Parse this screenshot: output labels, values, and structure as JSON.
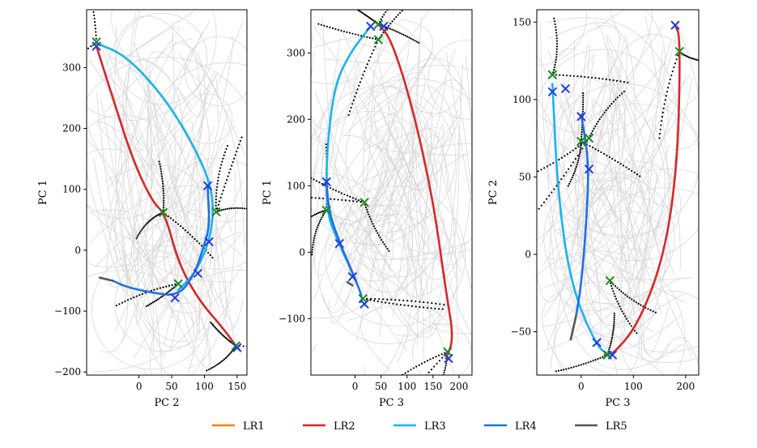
{
  "chart_data": [
    {
      "type": "line",
      "panel": "left",
      "xlabel": "PC 2",
      "ylabel": "PC 1",
      "xlim": [
        -80,
        165
      ],
      "ylim": [
        -205,
        395
      ],
      "xticks": [
        0,
        50,
        100,
        150
      ],
      "yticks": [
        -200,
        -100,
        0,
        100,
        200,
        300
      ],
      "series": [
        {
          "name": "LR2",
          "points": [
            [
              -65,
              335
            ],
            [
              -40,
              250
            ],
            [
              -10,
              150
            ],
            [
              20,
              80
            ],
            [
              40,
              60
            ],
            [
              60,
              -20
            ],
            [
              90,
              -80
            ],
            [
              130,
              -130
            ],
            [
              150,
              -160
            ]
          ]
        },
        {
          "name": "LR3",
          "points": [
            [
              -65,
              340
            ],
            [
              -20,
              320
            ],
            [
              40,
              250
            ],
            [
              90,
              160
            ],
            [
              115,
              90
            ],
            [
              110,
              20
            ],
            [
              85,
              -40
            ],
            [
              60,
              -65
            ]
          ]
        },
        {
          "name": "LR4",
          "points": [
            [
              105,
              105
            ],
            [
              108,
              40
            ],
            [
              100,
              10
            ],
            [
              85,
              -40
            ],
            [
              60,
              -75
            ],
            [
              20,
              -70
            ],
            [
              -20,
              -60
            ],
            [
              -40,
              -50
            ]
          ]
        },
        {
          "name": "LR5",
          "points": [
            [
              -40,
              -50
            ],
            [
              -60,
              -45
            ]
          ]
        }
      ],
      "markers_green": [
        [
          -65,
          342
        ],
        [
          37,
          62
        ],
        [
          118,
          63
        ],
        [
          60,
          -55
        ],
        [
          148,
          -157
        ]
      ],
      "markers_blue": [
        [
          -65,
          335
        ],
        [
          105,
          106
        ],
        [
          107,
          14
        ],
        [
          90,
          -38
        ],
        [
          55,
          -78
        ],
        [
          150,
          -160
        ]
      ]
    },
    {
      "type": "line",
      "panel": "middle",
      "xlabel": "PC 3",
      "ylabel": "PC 1",
      "xlim": [
        -85,
        225
      ],
      "ylim": [
        -185,
        365
      ],
      "xticks": [
        0,
        50,
        100,
        150,
        200
      ],
      "yticks": [
        -100,
        0,
        100,
        200,
        300
      ],
      "series": [
        {
          "name": "LR2",
          "points": [
            [
              45,
              343
            ],
            [
              70,
              320
            ],
            [
              110,
              220
            ],
            [
              150,
              80
            ],
            [
              175,
              -60
            ],
            [
              190,
              -130
            ],
            [
              175,
              -160
            ]
          ]
        },
        {
          "name": "LR3",
          "points": [
            [
              30,
              340
            ],
            [
              -10,
              300
            ],
            [
              -40,
              250
            ],
            [
              -55,
              150
            ],
            [
              -55,
              60
            ],
            [
              -35,
              20
            ],
            [
              0,
              -40
            ]
          ]
        },
        {
          "name": "LR4",
          "points": [
            [
              -55,
              105
            ],
            [
              -50,
              60
            ],
            [
              -30,
              15
            ],
            [
              0,
              -40
            ],
            [
              15,
              -70
            ],
            [
              10,
              -75
            ]
          ]
        },
        {
          "name": "LR5",
          "points": [
            [
              -5,
              -50
            ],
            [
              -15,
              -45
            ]
          ]
        }
      ],
      "markers_green": [
        [
          45,
          343
        ],
        [
          45,
          320
        ],
        [
          -55,
          63
        ],
        [
          18,
          75
        ],
        [
          178,
          -150
        ],
        [
          15,
          -70
        ]
      ],
      "markers_blue": [
        [
          30,
          340
        ],
        [
          55,
          340
        ],
        [
          -55,
          106
        ],
        [
          -30,
          13
        ],
        [
          -5,
          -37
        ],
        [
          18,
          -78
        ],
        [
          180,
          -160
        ]
      ]
    },
    {
      "type": "line",
      "panel": "right",
      "xlabel": "PC 3",
      "ylabel": "PC 2",
      "xlim": [
        -85,
        225
      ],
      "ylim": [
        -78,
        158
      ],
      "xticks": [
        0,
        100,
        200
      ],
      "yticks": [
        -50,
        0,
        50,
        100,
        150
      ],
      "series": [
        {
          "name": "LR2",
          "points": [
            [
              180,
              148
            ],
            [
              190,
              140
            ],
            [
              185,
              60
            ],
            [
              160,
              0
            ],
            [
              110,
              -45
            ],
            [
              60,
              -65
            ],
            [
              45,
              -65
            ]
          ]
        },
        {
          "name": "LR3",
          "points": [
            [
              -55,
              110
            ],
            [
              -45,
              40
            ],
            [
              -20,
              -20
            ],
            [
              30,
              -60
            ],
            [
              55,
              -65
            ]
          ]
        },
        {
          "name": "LR4",
          "points": [
            [
              0,
              90
            ],
            [
              15,
              60
            ],
            [
              10,
              20
            ],
            [
              0,
              -20
            ],
            [
              -10,
              -40
            ]
          ]
        },
        {
          "name": "LR5",
          "points": [
            [
              -10,
              -40
            ],
            [
              -20,
              -55
            ]
          ]
        }
      ],
      "markers_green": [
        [
          -55,
          116
        ],
        [
          0,
          73
        ],
        [
          15,
          75
        ],
        [
          55,
          -17
        ],
        [
          188,
          131
        ],
        [
          50,
          -65
        ]
      ],
      "markers_blue": [
        [
          -55,
          105
        ],
        [
          -30,
          107
        ],
        [
          0,
          89
        ],
        [
          15,
          55
        ],
        [
          30,
          -57
        ],
        [
          60,
          -65
        ],
        [
          180,
          148
        ]
      ]
    }
  ],
  "legend": [
    {
      "label": "LR1",
      "color": "#ff7f0e"
    },
    {
      "label": "LR2",
      "color": "#d62728"
    },
    {
      "label": "LR3",
      "color": "#1ab2ee"
    },
    {
      "label": "LR4",
      "color": "#1f6fe6"
    },
    {
      "label": "LR5",
      "color": "#555555"
    }
  ],
  "colors": {
    "LR2": "#d62728",
    "LR3": "#1ab2ee",
    "LR4": "#1f6fe6",
    "LR5": "#555555",
    "green_marker": "#1a8a1a",
    "blue_marker": "#1f3fe0",
    "scatter": "#000000",
    "background_curves": "#d8d8d8"
  }
}
